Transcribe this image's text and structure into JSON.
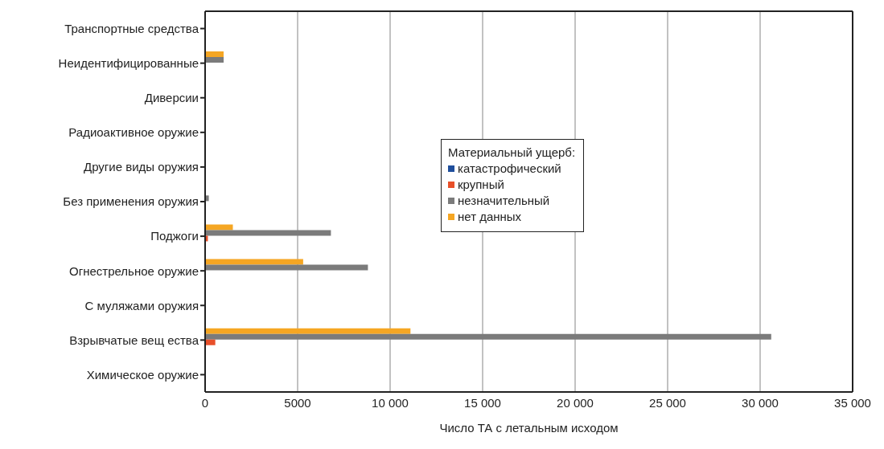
{
  "chart_data": {
    "type": "bar",
    "orientation": "horizontal",
    "xlabel": "Число ТА с летальным исходом",
    "legend_title": "Материальный ущерб:",
    "categories": [
      "Транспортные средства",
      "Неидентифицированные",
      "Диверсии",
      "Радиоактивное оружие",
      "Другие виды оружия",
      "Без применения оружия",
      "Поджоги",
      "Огнестрельное оружие",
      "С муляжами оружия",
      "Взрывчатые вещ ества",
      "Химическое оружие"
    ],
    "series": [
      {
        "name": "катастрофический",
        "color": "#1f4e9c",
        "values": [
          0,
          0,
          0,
          0,
          0,
          0,
          0,
          0,
          0,
          0,
          0
        ]
      },
      {
        "name": "крупный",
        "color": "#e8502a",
        "values": [
          0,
          0,
          0,
          0,
          0,
          0,
          150,
          0,
          0,
          550,
          0
        ]
      },
      {
        "name": "незначительный",
        "color": "#7b7b7b",
        "values": [
          0,
          1000,
          0,
          0,
          0,
          200,
          6800,
          8800,
          0,
          30600,
          0
        ]
      },
      {
        "name": "нет данных",
        "color": "#f5a623",
        "values": [
          0,
          1000,
          0,
          0,
          0,
          0,
          1500,
          5300,
          0,
          11100,
          0
        ]
      }
    ],
    "xlim": [
      0,
      35000
    ],
    "xticks": [
      0,
      {
        "value": 5000,
        "label": "5000"
      },
      {
        "value": 10000,
        "label": "10 000"
      },
      {
        "value": 15000,
        "label": "15 000"
      },
      {
        "value": 20000,
        "label": "20 000"
      },
      {
        "value": 25000,
        "label": "25 000"
      },
      {
        "value": 30000,
        "label": "30 000"
      },
      {
        "value": 35000,
        "label": "35 000"
      }
    ],
    "grid": "x",
    "legend": "right"
  }
}
